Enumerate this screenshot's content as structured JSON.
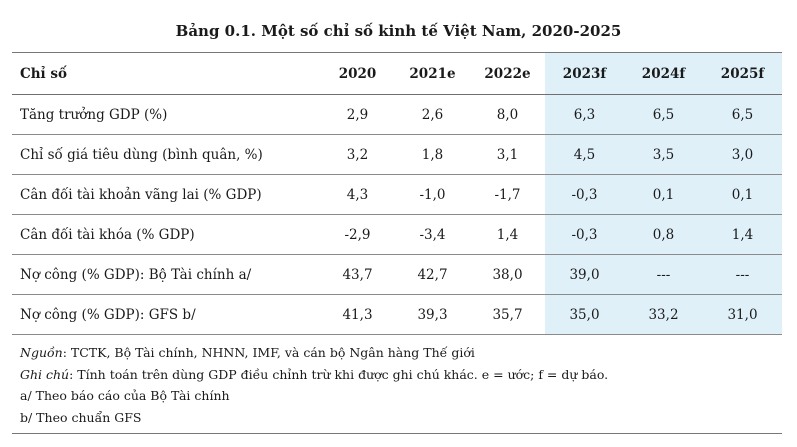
{
  "title": "Bảng 0.1. Một số chỉ số kinh tế Việt Nam, 2020-2025",
  "headers": [
    "Chỉ số",
    "2020",
    "2021e",
    "2022e",
    "2023f",
    "2024f",
    "2025f"
  ],
  "rows": [
    [
      "Tăng trưởng GDP (%)",
      "2,9",
      "2,6",
      "8,0",
      "6,3",
      "6,5",
      "6,5"
    ],
    [
      "Chỉ số giá tiêu dùng (bình quân, %)",
      "3,2",
      "1,8",
      "3,1",
      "4,5",
      "3,5",
      "3,0"
    ],
    [
      "Cân đối tài khoản vãng lai (% GDP)",
      "4,3",
      "-1,0",
      "-1,7",
      "-0,3",
      "0,1",
      "0,1"
    ],
    [
      "Cân đối tài khóa (% GDP)",
      "-2,9",
      "-3,4",
      "1,4",
      "-0,3",
      "0,8",
      "1,4"
    ],
    [
      "Nợ công (% GDP): Bộ Tài chính a/",
      "43,7",
      "42,7",
      "38,0",
      "39,0",
      "---",
      "---"
    ],
    [
      "Nợ công (% GDP): GFS b/",
      "41,3",
      "39,3",
      "35,7",
      "35,0",
      "33,2",
      "31,0"
    ]
  ],
  "highlight_color": "#dff0f8",
  "notes": {
    "source_label": "Nguồn",
    "source_text": ": TCTK, Bộ Tài chính, NHNN, IMF, và cán bộ Ngân hàng Thế giới",
    "remark_label": "Ghi chú",
    "remark_text": ": Tính toán trên dùng GDP điều chỉnh trừ khi được ghi chú khác. e = ước; f = dự báo.",
    "a": "a/ Theo báo cáo của Bộ Tài chính",
    "b": "b/ Theo chuẩn GFS"
  }
}
